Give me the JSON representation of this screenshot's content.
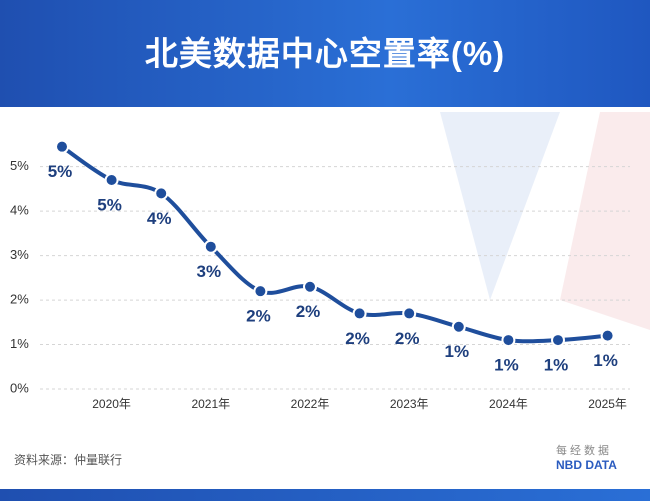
{
  "chart_data": {
    "type": "line",
    "title": "北美数据中心空置率(%)",
    "categories": [
      null,
      "2020年",
      null,
      "2021年",
      null,
      "2022年",
      null,
      "2023年",
      null,
      "2024年",
      null,
      "2025年"
    ],
    "series": [
      {
        "name": "空置率",
        "color": "#1f4e9c",
        "values": [
          5.45,
          4.7,
          4.4,
          3.2,
          2.2,
          2.3,
          1.7,
          1.7,
          1.4,
          1.1,
          1.1,
          1.2
        ],
        "value_labels": [
          "5%",
          "5%",
          "4%",
          "3%",
          "2%",
          "2%",
          "2%",
          "2%",
          "1%",
          "1%",
          "1%",
          "1%"
        ]
      }
    ],
    "ylim": [
      0,
      5.6
    ],
    "yticks": [
      {
        "value": 0,
        "label": "0%"
      },
      {
        "value": 1,
        "label": "1%"
      },
      {
        "value": 2,
        "label": "2%"
      },
      {
        "value": 3,
        "label": "3%"
      },
      {
        "value": 4,
        "label": "4%"
      },
      {
        "value": 5,
        "label": "5%"
      }
    ],
    "grid": true
  },
  "source": "资料来源：仲量联行",
  "logo": {
    "cn": "每经数据",
    "en": "NBD DATA"
  }
}
